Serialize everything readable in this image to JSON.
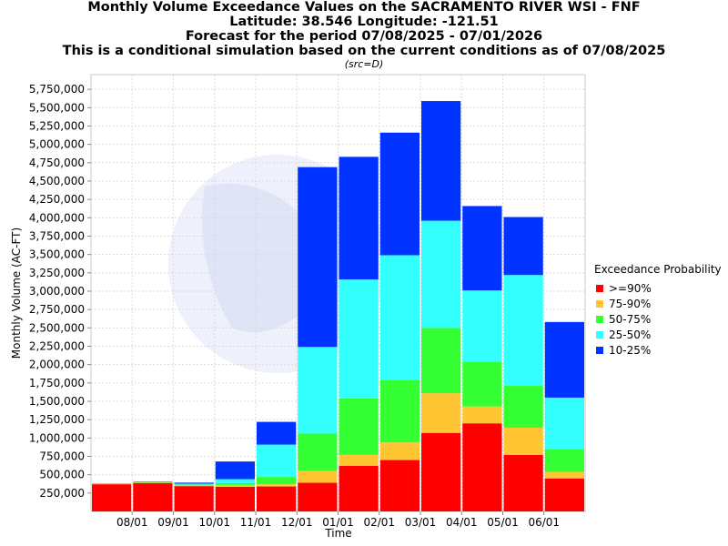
{
  "header": {
    "title_line1": "Monthly Volume Exceedance Values on the SACRAMENTO RIVER WSI - FNF",
    "title_line2": "Latitude: 38.546 Longitude: -121.51",
    "title_line3": "Forecast for the period 07/08/2025 - 07/01/2026",
    "title_line4": "This is a conditional simulation based on the current conditions as of 07/08/2025",
    "subtitle": "(src=D)"
  },
  "chart_data": {
    "type": "bar",
    "stacked": true,
    "title": "Monthly Volume Exceedance Values on the SACRAMENTO RIVER WSI - FNF",
    "xlabel": "Time",
    "ylabel": "Monthly Volume (AC-FT)",
    "ylim": [
      0,
      5950000
    ],
    "yticks": [
      250000,
      500000,
      750000,
      1000000,
      1250000,
      1500000,
      1750000,
      2000000,
      2250000,
      2500000,
      2750000,
      3000000,
      3250000,
      3500000,
      3750000,
      4000000,
      4250000,
      4500000,
      4750000,
      5000000,
      5250000,
      5500000,
      5750000
    ],
    "ytick_labels": [
      "250,000",
      "500,000",
      "750,000",
      "1,000,000",
      "1,250,000",
      "1,500,000",
      "1,750,000",
      "2,000,000",
      "2,250,000",
      "2,500,000",
      "2,750,000",
      "3,000,000",
      "3,250,000",
      "3,500,000",
      "3,750,000",
      "4,000,000",
      "4,250,000",
      "4,500,000",
      "4,750,000",
      "5,000,000",
      "5,250,000",
      "5,500,000",
      "5,750,000"
    ],
    "xtick_labels": [
      "08/01",
      "09/01",
      "10/01",
      "11/01",
      "12/01",
      "01/01",
      "02/01",
      "03/01",
      "04/01",
      "05/01",
      "06/01"
    ],
    "grid": true,
    "legend_title": "Exceedance Probability",
    "legend_position": "right",
    "bars": [
      {
        "levels": [
          370000,
          375000,
          378000,
          380000,
          382000
        ]
      },
      {
        "levels": [
          385000,
          392000,
          398000,
          403000,
          408000
        ]
      },
      {
        "levels": [
          345000,
          355000,
          365000,
          378000,
          392000
        ]
      },
      {
        "levels": [
          335000,
          360000,
          385000,
          440000,
          680000
        ]
      },
      {
        "levels": [
          340000,
          370000,
          470000,
          910000,
          1220000
        ]
      },
      {
        "levels": [
          390000,
          550000,
          1060000,
          2240000,
          4690000
        ]
      },
      {
        "levels": [
          620000,
          770000,
          1540000,
          3160000,
          4830000
        ]
      },
      {
        "levels": [
          700000,
          940000,
          1790000,
          3490000,
          5160000
        ]
      },
      {
        "levels": [
          1070000,
          1610000,
          2500000,
          3960000,
          5590000
        ]
      },
      {
        "levels": [
          1200000,
          1430000,
          2040000,
          3010000,
          4160000
        ]
      },
      {
        "levels": [
          770000,
          1140000,
          1710000,
          3220000,
          4010000
        ]
      },
      {
        "levels": [
          450000,
          540000,
          850000,
          1550000,
          2580000
        ]
      }
    ],
    "series": [
      {
        "name": ">=90%",
        "color": "#ff0000"
      },
      {
        "name": "75-90%",
        "color": "#ffc533"
      },
      {
        "name": "50-75%",
        "color": "#33ff33"
      },
      {
        "name": "25-50%",
        "color": "#33ffff"
      },
      {
        "name": "10-25%",
        "color": "#0033ff"
      }
    ]
  }
}
